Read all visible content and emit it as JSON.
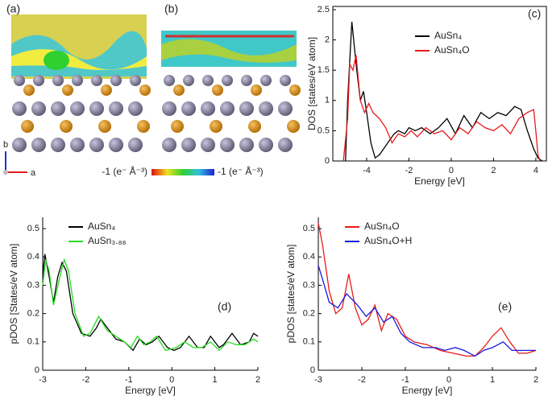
{
  "figure": {
    "panel_a": "(a)",
    "panel_b": "(b)",
    "colorbar_left": "-1 (e⁻ Å⁻³)",
    "colorbar_right": "-1 (e⁻ Å⁻³)",
    "axis_b": "b",
    "axis_a": "a"
  },
  "chart_data": [
    {
      "type": "line",
      "panel_label": "(c)",
      "xlabel": "Energy [eV]",
      "ylabel": "DOS [states/eV atom]",
      "frame": "box",
      "xlim": [
        -5.6,
        4.5
      ],
      "xticks": [
        -4,
        -2,
        0,
        2,
        4
      ],
      "ylim": [
        0,
        2.5
      ],
      "yticks": [
        0,
        0.5,
        1,
        1.5,
        2,
        2.5
      ],
      "series": [
        {
          "name": "AuSn₄",
          "color": "#000000",
          "x": [
            -5.0,
            -4.9,
            -4.7,
            -4.5,
            -4.3,
            -4.15,
            -4.0,
            -3.8,
            -3.6,
            -3.4,
            -3.2,
            -3.0,
            -2.7,
            -2.5,
            -2.2,
            -2.0,
            -1.7,
            -1.4,
            -1.0,
            -0.6,
            -0.2,
            0.2,
            0.6,
            1.0,
            1.4,
            1.8,
            2.2,
            2.6,
            3.0,
            3.3,
            3.6,
            3.9,
            4.1,
            4.3
          ],
          "values": [
            0,
            1.0,
            2.3,
            1.6,
            1.0,
            1.15,
            0.8,
            0.3,
            0.05,
            0.1,
            0.2,
            0.3,
            0.45,
            0.5,
            0.45,
            0.55,
            0.5,
            0.55,
            0.45,
            0.55,
            0.7,
            0.45,
            0.75,
            0.55,
            0.8,
            0.7,
            0.8,
            0.75,
            0.9,
            0.85,
            0.5,
            0.2,
            0.05,
            0
          ]
        },
        {
          "name": "AuSn₄O",
          "color": "#e8191b",
          "x": [
            -5.1,
            -4.9,
            -4.8,
            -4.65,
            -4.5,
            -4.3,
            -4.1,
            -3.9,
            -3.7,
            -3.4,
            -3.1,
            -2.8,
            -2.5,
            -2.2,
            -1.9,
            -1.6,
            -1.2,
            -0.8,
            -0.4,
            0,
            0.4,
            0.8,
            1.2,
            1.6,
            2.0,
            2.4,
            2.8,
            3.2,
            3.6,
            3.9,
            4.0,
            4.1,
            4.2
          ],
          "values": [
            0,
            0.7,
            1.6,
            1.5,
            1.75,
            1.0,
            0.8,
            0.95,
            0.8,
            0.7,
            0.55,
            0.3,
            0.45,
            0.4,
            0.5,
            0.4,
            0.55,
            0.45,
            0.5,
            0.35,
            0.55,
            0.45,
            0.65,
            0.55,
            0.5,
            0.6,
            0.45,
            0.7,
            0.8,
            0.85,
            0.5,
            0.1,
            0
          ]
        }
      ]
    },
    {
      "type": "line",
      "panel_label": "(d)",
      "xlabel": "Energy [eV]",
      "ylabel": "pDOS [States/eV atom]",
      "frame": "axes",
      "xlim": [
        -3,
        2
      ],
      "xticks": [
        -3,
        -2,
        -1,
        0,
        1,
        2
      ],
      "ylim": [
        0,
        0.54
      ],
      "yticks": [
        0,
        0.1,
        0.2,
        0.3,
        0.4,
        0.5
      ],
      "series": [
        {
          "name": "AuSn₄",
          "color": "#000000",
          "x": [
            -3,
            -2.95,
            -2.85,
            -2.75,
            -2.65,
            -2.55,
            -2.45,
            -2.3,
            -2.1,
            -1.9,
            -1.75,
            -1.65,
            -1.5,
            -1.3,
            -1.1,
            -0.9,
            -0.75,
            -0.6,
            -0.45,
            -0.3,
            -0.1,
            0.05,
            0.2,
            0.4,
            0.6,
            0.75,
            0.9,
            1.1,
            1.2,
            1.4,
            1.6,
            1.8,
            1.9,
            2
          ],
          "values": [
            0.33,
            0.41,
            0.33,
            0.24,
            0.33,
            0.38,
            0.35,
            0.2,
            0.13,
            0.12,
            0.15,
            0.18,
            0.15,
            0.11,
            0.1,
            0.07,
            0.11,
            0.09,
            0.1,
            0.12,
            0.08,
            0.07,
            0.08,
            0.12,
            0.08,
            0.08,
            0.12,
            0.08,
            0.09,
            0.13,
            0.09,
            0.1,
            0.13,
            0.12
          ]
        },
        {
          "name": "AuSn₃.₈₈",
          "color": "#22dd22",
          "x": [
            -3,
            -2.93,
            -2.85,
            -2.75,
            -2.6,
            -2.5,
            -2.4,
            -2.25,
            -2.05,
            -1.9,
            -1.7,
            -1.5,
            -1.3,
            -1.1,
            -0.95,
            -0.8,
            -0.65,
            -0.5,
            -0.35,
            -0.15,
            0.1,
            0.3,
            0.5,
            0.7,
            0.9,
            1.1,
            1.3,
            1.5,
            1.7,
            1.9,
            2
          ],
          "values": [
            0.3,
            0.39,
            0.35,
            0.23,
            0.33,
            0.39,
            0.35,
            0.2,
            0.12,
            0.13,
            0.19,
            0.14,
            0.12,
            0.1,
            0.08,
            0.12,
            0.09,
            0.1,
            0.12,
            0.07,
            0.08,
            0.1,
            0.08,
            0.08,
            0.1,
            0.07,
            0.1,
            0.09,
            0.09,
            0.11,
            0.1
          ]
        }
      ]
    },
    {
      "type": "line",
      "panel_label": "(e)",
      "xlabel": "Energy [eV]",
      "ylabel": "pDOS [states/eV atom]",
      "frame": "axes",
      "xlim": [
        -3,
        2
      ],
      "xticks": [
        -3,
        -2,
        -1,
        0,
        1,
        2
      ],
      "ylim": [
        0,
        0.54
      ],
      "yticks": [
        0,
        0.1,
        0.2,
        0.3,
        0.4,
        0.5
      ],
      "series": [
        {
          "name": "AuSn₄O",
          "color": "#e8191b",
          "x": [
            -3,
            -2.9,
            -2.75,
            -2.6,
            -2.45,
            -2.3,
            -2.15,
            -2.0,
            -1.85,
            -1.7,
            -1.55,
            -1.4,
            -1.2,
            -1.0,
            -0.8,
            -0.5,
            -0.2,
            0.1,
            0.4,
            0.6,
            0.8,
            1.0,
            1.2,
            1.4,
            1.6,
            1.8,
            2.0
          ],
          "values": [
            0.52,
            0.44,
            0.28,
            0.2,
            0.22,
            0.34,
            0.22,
            0.16,
            0.18,
            0.23,
            0.14,
            0.2,
            0.18,
            0.12,
            0.1,
            0.09,
            0.07,
            0.06,
            0.05,
            0.05,
            0.08,
            0.12,
            0.15,
            0.1,
            0.06,
            0.06,
            0.07
          ]
        },
        {
          "name": "AuSn₄O+H",
          "color": "#1a1adc",
          "x": [
            -3,
            -2.9,
            -2.75,
            -2.55,
            -2.35,
            -2.1,
            -1.9,
            -1.7,
            -1.5,
            -1.3,
            -1.1,
            -0.9,
            -0.6,
            -0.3,
            -0.1,
            0.15,
            0.35,
            0.6,
            0.8,
            1.0,
            1.25,
            1.45,
            1.7,
            2
          ],
          "values": [
            0.37,
            0.32,
            0.24,
            0.22,
            0.27,
            0.23,
            0.19,
            0.22,
            0.17,
            0.19,
            0.13,
            0.1,
            0.08,
            0.08,
            0.07,
            0.08,
            0.07,
            0.05,
            0.07,
            0.08,
            0.1,
            0.07,
            0.07,
            0.07
          ]
        }
      ]
    }
  ]
}
